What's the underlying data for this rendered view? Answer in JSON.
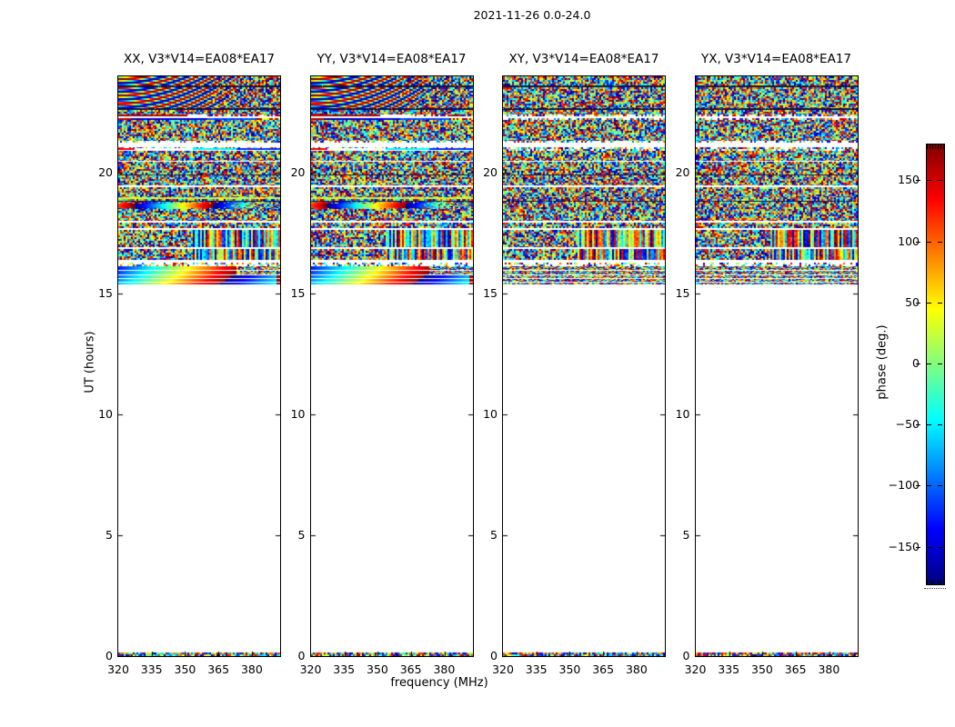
{
  "chart_data": {
    "type": "heatmap",
    "title": "2021-11-26 0.0-24.0",
    "xlabel": "frequency (MHz)",
    "ylabel": "UT (hours)",
    "colorbar_label": "phase (deg.)",
    "colormap": "jet",
    "value_range_deg": [
      -180,
      180
    ],
    "colorbar_ticks": [
      "150",
      "100",
      "50",
      "0",
      "-50",
      "-100",
      "-150"
    ],
    "x_range_mhz": [
      320,
      392.7
    ],
    "x_ticks": [
      "320",
      "335",
      "350",
      "365",
      "380"
    ],
    "y_range_hours": [
      0,
      24
    ],
    "y_ticks": [
      "0",
      "5",
      "10",
      "15",
      "20"
    ],
    "panels": [
      {
        "pol": "XX",
        "label": "XX, V3*V14=EA08*EA17",
        "style": "parallel"
      },
      {
        "pol": "YY",
        "label": "YY, V3*V14=EA08*EA17",
        "style": "parallel"
      },
      {
        "pol": "XY",
        "label": "XY, V3*V14=EA08*EA17",
        "style": "cross"
      },
      {
        "pol": "YX",
        "label": "YX, V3*V14=EA08*EA17",
        "style": "cross"
      }
    ],
    "bands": [
      {
        "ut": [
          24.0,
          23.62
        ],
        "parallel": "moire",
        "cross": "noise"
      },
      {
        "ut": [
          23.62,
          23.55
        ],
        "parallel": "dark",
        "cross": "dark"
      },
      {
        "ut": [
          23.55,
          22.68
        ],
        "parallel": "moire",
        "cross": "noise"
      },
      {
        "ut": [
          22.68,
          22.62
        ],
        "parallel": "dark",
        "cross": "dark"
      },
      {
        "ut": [
          22.62,
          22.42
        ],
        "parallel": "noise",
        "cross": "noise"
      },
      {
        "ut": [
          22.42,
          22.2
        ],
        "parallel": "redblue_line",
        "cross": "sparse_lines"
      },
      {
        "ut": [
          22.2,
          21.32
        ],
        "parallel": "noise",
        "cross": "noise"
      },
      {
        "ut": [
          21.32,
          21.26
        ],
        "parallel": "sparse",
        "cross": "sparse"
      },
      {
        "ut": [
          21.26,
          21.06
        ],
        "parallel": "white",
        "cross": "white"
      },
      {
        "ut": [
          21.06,
          20.9
        ],
        "parallel": "cyan_line",
        "cross": "sparse_lines"
      },
      {
        "ut": [
          20.9,
          20.52
        ],
        "parallel": "noise",
        "cross": "noise"
      },
      {
        "ut": [
          20.52,
          20.46
        ],
        "parallel": "white",
        "cross": "white"
      },
      {
        "ut": [
          20.46,
          19.95
        ],
        "parallel": "noise",
        "cross": "noise"
      },
      {
        "ut": [
          19.95,
          19.9
        ],
        "parallel": "dark",
        "cross": "dark"
      },
      {
        "ut": [
          19.9,
          19.47
        ],
        "parallel": "noise",
        "cross": "noise"
      },
      {
        "ut": [
          19.47,
          19.4
        ],
        "parallel": "white",
        "cross": "white"
      },
      {
        "ut": [
          19.4,
          18.98
        ],
        "parallel": "noise",
        "cross": "noise"
      },
      {
        "ut": [
          18.98,
          18.93
        ],
        "parallel": "bright",
        "cross": "noise"
      },
      {
        "ut": [
          18.93,
          18.84
        ],
        "parallel": "noise",
        "cross": "noise"
      },
      {
        "ut": [
          18.84,
          18.8
        ],
        "parallel": "dark",
        "cross": "dark"
      },
      {
        "ut": [
          18.8,
          18.52
        ],
        "parallel": "blob",
        "cross": "noise"
      },
      {
        "ut": [
          18.52,
          18.02
        ],
        "parallel": "noise",
        "cross": "noise"
      },
      {
        "ut": [
          18.02,
          17.96
        ],
        "parallel": "white",
        "cross": "white"
      },
      {
        "ut": [
          17.96,
          17.72
        ],
        "parallel": "noise",
        "cross": "noise"
      },
      {
        "ut": [
          17.72,
          17.66
        ],
        "parallel": "white",
        "cross": "white"
      },
      {
        "ut": [
          17.66,
          16.92
        ],
        "parallel": "noisev",
        "cross": "noisev"
      },
      {
        "ut": [
          16.92,
          16.86
        ],
        "parallel": "white",
        "cross": "white"
      },
      {
        "ut": [
          16.86,
          16.42
        ],
        "parallel": "noisev",
        "cross": "noisev"
      },
      {
        "ut": [
          16.42,
          16.28
        ],
        "parallel": "white",
        "cross": "white"
      },
      {
        "ut": [
          16.28,
          16.14
        ],
        "parallel": "sparse",
        "cross": "sparse"
      },
      {
        "ut": [
          16.14,
          15.36
        ],
        "parallel": "rainbow",
        "cross": "noisestripes"
      },
      {
        "ut": [
          15.36,
          0.14
        ],
        "parallel": "white",
        "cross": "white"
      },
      {
        "ut": [
          0.14,
          0.0
        ],
        "parallel": "noise",
        "cross": "noise"
      }
    ]
  }
}
